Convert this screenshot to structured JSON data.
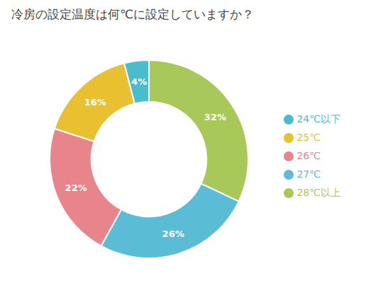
{
  "chart_data": {
    "type": "donut",
    "title": "冷房の設定温度は何℃に設定していますか？",
    "categories": [
      "28℃以上",
      "27℃",
      "26℃",
      "25℃",
      "24℃以下"
    ],
    "values": [
      32,
      26,
      22,
      16,
      4
    ],
    "value_labels": [
      "32%",
      "26%",
      "22%",
      "16%",
      "4%"
    ],
    "colors": [
      "#a8c85a",
      "#5bbcd6",
      "#e8858a",
      "#e8c030",
      "#4bbccc"
    ],
    "data_labels": true,
    "legend": "right"
  }
}
